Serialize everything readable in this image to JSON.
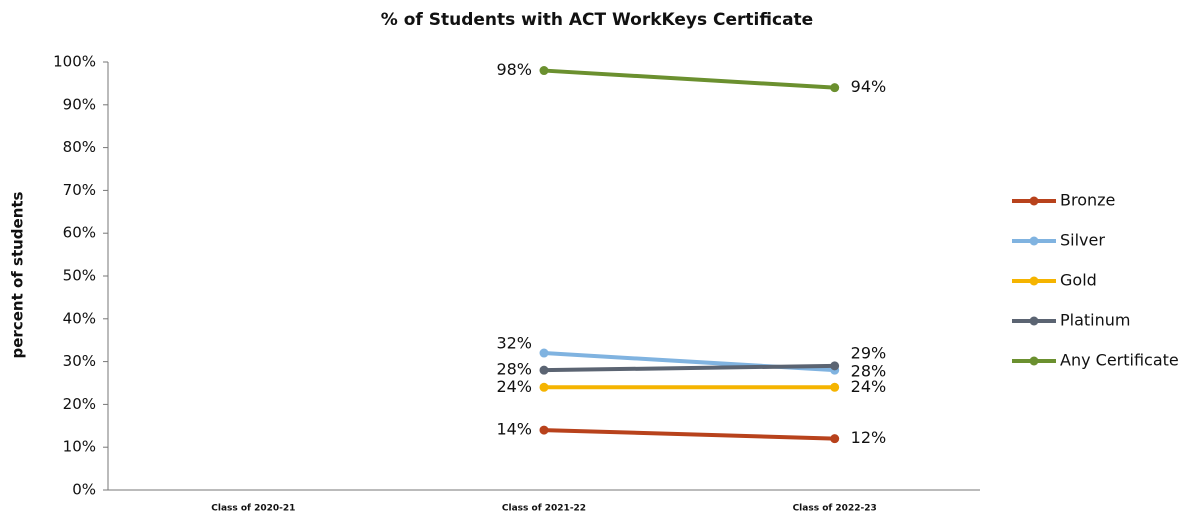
{
  "chart_data": {
    "type": "line",
    "title": "% of Students with ACT WorkKeys Certificate",
    "y_label": "percent of students",
    "categories": [
      "Class of 2020-21",
      "Class of 2021-22",
      "Class of 2022-23"
    ],
    "series": [
      {
        "name": "Bronze",
        "color": "#b8421c",
        "label_color": "#6e2a1c",
        "values": [
          null,
          14,
          12
        ],
        "value_labels": [
          null,
          "14%",
          "12%"
        ]
      },
      {
        "name": "Silver",
        "color": "#80b3e0",
        "label_color": "#6f9ecb",
        "values": [
          null,
          32,
          28
        ],
        "value_labels": [
          null,
          "32%",
          "28%"
        ]
      },
      {
        "name": "Gold",
        "color": "#f5b400",
        "label_color": "#eaa400",
        "values": [
          null,
          24,
          24
        ],
        "value_labels": [
          null,
          "24%",
          "24%"
        ]
      },
      {
        "name": "Platinum",
        "color": "#5b6472",
        "label_color": "#3f4450",
        "values": [
          null,
          28,
          29
        ],
        "value_labels": [
          null,
          "28%",
          "29%"
        ]
      },
      {
        "name": "Any Certificate",
        "color": "#6b902f",
        "label_color": "#55732a",
        "values": [
          null,
          98,
          94
        ],
        "value_labels": [
          null,
          "98%",
          "94%"
        ]
      }
    ],
    "ylim": [
      0,
      100
    ],
    "yticks": [
      {
        "value": 0,
        "label": "0%"
      },
      {
        "value": 10,
        "label": "10%"
      },
      {
        "value": 20,
        "label": "20%"
      },
      {
        "value": 30,
        "label": "30%"
      },
      {
        "value": 40,
        "label": "40%"
      },
      {
        "value": 50,
        "label": "50%"
      },
      {
        "value": 60,
        "label": "60%"
      },
      {
        "value": 70,
        "label": "70%"
      },
      {
        "value": 80,
        "label": "80%"
      },
      {
        "value": 90,
        "label": "90%"
      },
      {
        "value": 100,
        "label": "100%"
      }
    ],
    "grid": false,
    "legend": "right"
  }
}
